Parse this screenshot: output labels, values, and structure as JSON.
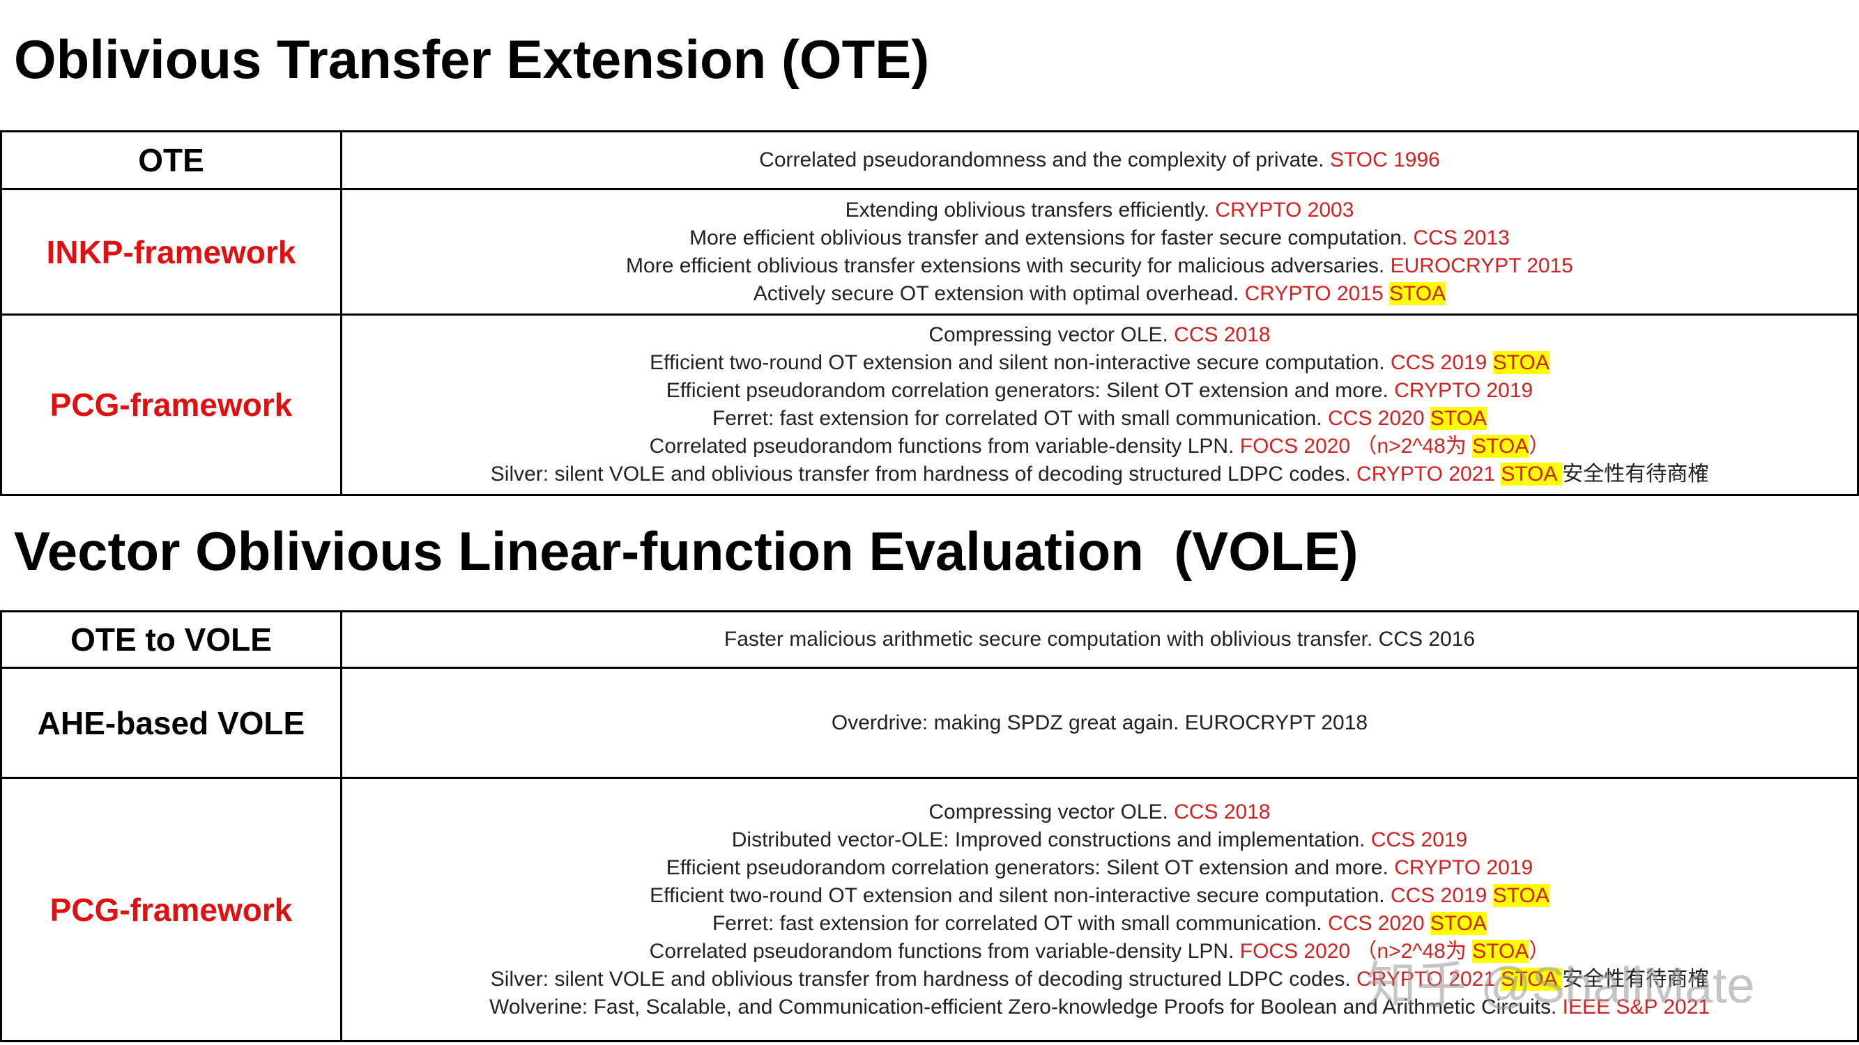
{
  "sections": [
    {
      "title": "Oblivious Transfer Extension (OTE)",
      "rows": [
        {
          "label": "OTE",
          "label_color": "#000000",
          "lines": [
            [
              {
                "text": "Correlated pseudorandomness and the complexity of private. "
              },
              {
                "text": "STOC 1996",
                "color": "#d42020"
              }
            ]
          ]
        },
        {
          "label": "INKP-framework",
          "label_color": "#e01010",
          "lines": [
            [
              {
                "text": "Extending oblivious transfers efficiently. "
              },
              {
                "text": "CRYPTO 2003",
                "color": "#d42020"
              }
            ],
            [
              {
                "text": "More efficient oblivious transfer and extensions for faster secure computation. "
              },
              {
                "text": "CCS 2013",
                "color": "#d42020"
              }
            ],
            [
              {
                "text": "More efficient oblivious transfer extensions with security for malicious adversaries. "
              },
              {
                "text": "EUROCRYPT 2015",
                "color": "#d42020"
              }
            ],
            [
              {
                "text": "Actively secure OT extension with optimal overhead. "
              },
              {
                "text": "CRYPTO 2015 ",
                "color": "#d42020"
              },
              {
                "text": "STOA",
                "color": "#d42020",
                "highlight": "#ffff00"
              }
            ]
          ]
        },
        {
          "label": "PCG-framework",
          "label_color": "#e01010",
          "lines": [
            [
              {
                "text": "Compressing vector OLE. "
              },
              {
                "text": "CCS 2018",
                "color": "#d42020"
              }
            ],
            [
              {
                "text": "Efficient two-round OT extension and silent non-interactive secure computation. "
              },
              {
                "text": "CCS 2019 ",
                "color": "#d42020"
              },
              {
                "text": "STOA",
                "color": "#d42020",
                "highlight": "#ffff00"
              }
            ],
            [
              {
                "text": "Efficient pseudorandom correlation generators: Silent OT extension and more. "
              },
              {
                "text": "CRYPTO 2019",
                "color": "#d42020"
              }
            ],
            [
              {
                "text": "Ferret: fast extension for correlated OT with small communication. "
              },
              {
                "text": "CCS 2020 ",
                "color": "#d42020"
              },
              {
                "text": "STOA",
                "color": "#d42020",
                "highlight": "#ffff00"
              }
            ],
            [
              {
                "text": "Correlated pseudorandom functions from variable-density LPN. "
              },
              {
                "text": "FOCS 2020 （n>2^48为 ",
                "color": "#d42020"
              },
              {
                "text": "STOA",
                "color": "#d42020",
                "highlight": "#ffff00"
              },
              {
                "text": "）",
                "color": "#d42020"
              }
            ],
            [
              {
                "text": "Silver: silent VOLE and oblivious transfer from hardness of decoding structured LDPC codes. "
              },
              {
                "text": "CRYPTO 2021 ",
                "color": "#d42020"
              },
              {
                "text": "STOA ",
                "color": "#d42020",
                "highlight": "#ffff00"
              },
              {
                "text": "安全性有待商榷"
              }
            ]
          ]
        }
      ]
    },
    {
      "title": "Vector Oblivious Linear-function Evaluation  (VOLE)",
      "rows": [
        {
          "label": "OTE to VOLE",
          "label_color": "#000000",
          "lines": [
            [
              {
                "text": "Faster malicious arithmetic secure computation with oblivious transfer. CCS 2016"
              }
            ]
          ]
        },
        {
          "label": "AHE-based VOLE",
          "label_color": "#000000",
          "lines": [
            [
              {
                "text": "Overdrive: making SPDZ great again. EUROCRYPT 2018"
              }
            ]
          ]
        },
        {
          "label": "PCG-framework",
          "label_color": "#e01010",
          "lines": [
            [
              {
                "text": "Compressing vector OLE. "
              },
              {
                "text": "CCS 2018",
                "color": "#d42020"
              }
            ],
            [
              {
                "text": "Distributed vector-OLE: Improved constructions and implementation. "
              },
              {
                "text": "CCS 2019",
                "color": "#d42020"
              }
            ],
            [
              {
                "text": "Efficient pseudorandom correlation generators: Silent OT extension and more. "
              },
              {
                "text": "CRYPTO 2019",
                "color": "#d42020"
              }
            ],
            [
              {
                "text": "Efficient two-round OT extension and silent non-interactive secure computation. "
              },
              {
                "text": "CCS 2019 ",
                "color": "#d42020"
              },
              {
                "text": "STOA",
                "color": "#d42020",
                "highlight": "#ffff00"
              }
            ],
            [
              {
                "text": "Ferret: fast extension for correlated OT with small communication. "
              },
              {
                "text": "CCS 2020 ",
                "color": "#d42020"
              },
              {
                "text": "STOA",
                "color": "#d42020",
                "highlight": "#ffff00"
              }
            ],
            [
              {
                "text": "Correlated pseudorandom functions from variable-density LPN. "
              },
              {
                "text": "FOCS 2020 （n>2^48为 ",
                "color": "#d42020"
              },
              {
                "text": "STOA",
                "color": "#d42020",
                "highlight": "#ffff00"
              },
              {
                "text": "）",
                "color": "#d42020"
              }
            ],
            [
              {
                "text": "Silver: silent VOLE and oblivious transfer from hardness of decoding structured LDPC codes. "
              },
              {
                "text": "CRYPTO 2021 ",
                "color": "#d42020"
              },
              {
                "text": "STOA ",
                "color": "#d42020",
                "highlight": "#ffff00"
              },
              {
                "text": "安全性有待商榷"
              }
            ],
            [
              {
                "text": "Wolverine: Fast, Scalable, and Communication-efficient Zero-knowledge Proofs for Boolean and Arithmetic Circuits. "
              },
              {
                "text": "IEEE S&P 2021",
                "color": "#d42020"
              }
            ]
          ]
        }
      ]
    }
  ],
  "watermark": "知乎 @ShallMate"
}
